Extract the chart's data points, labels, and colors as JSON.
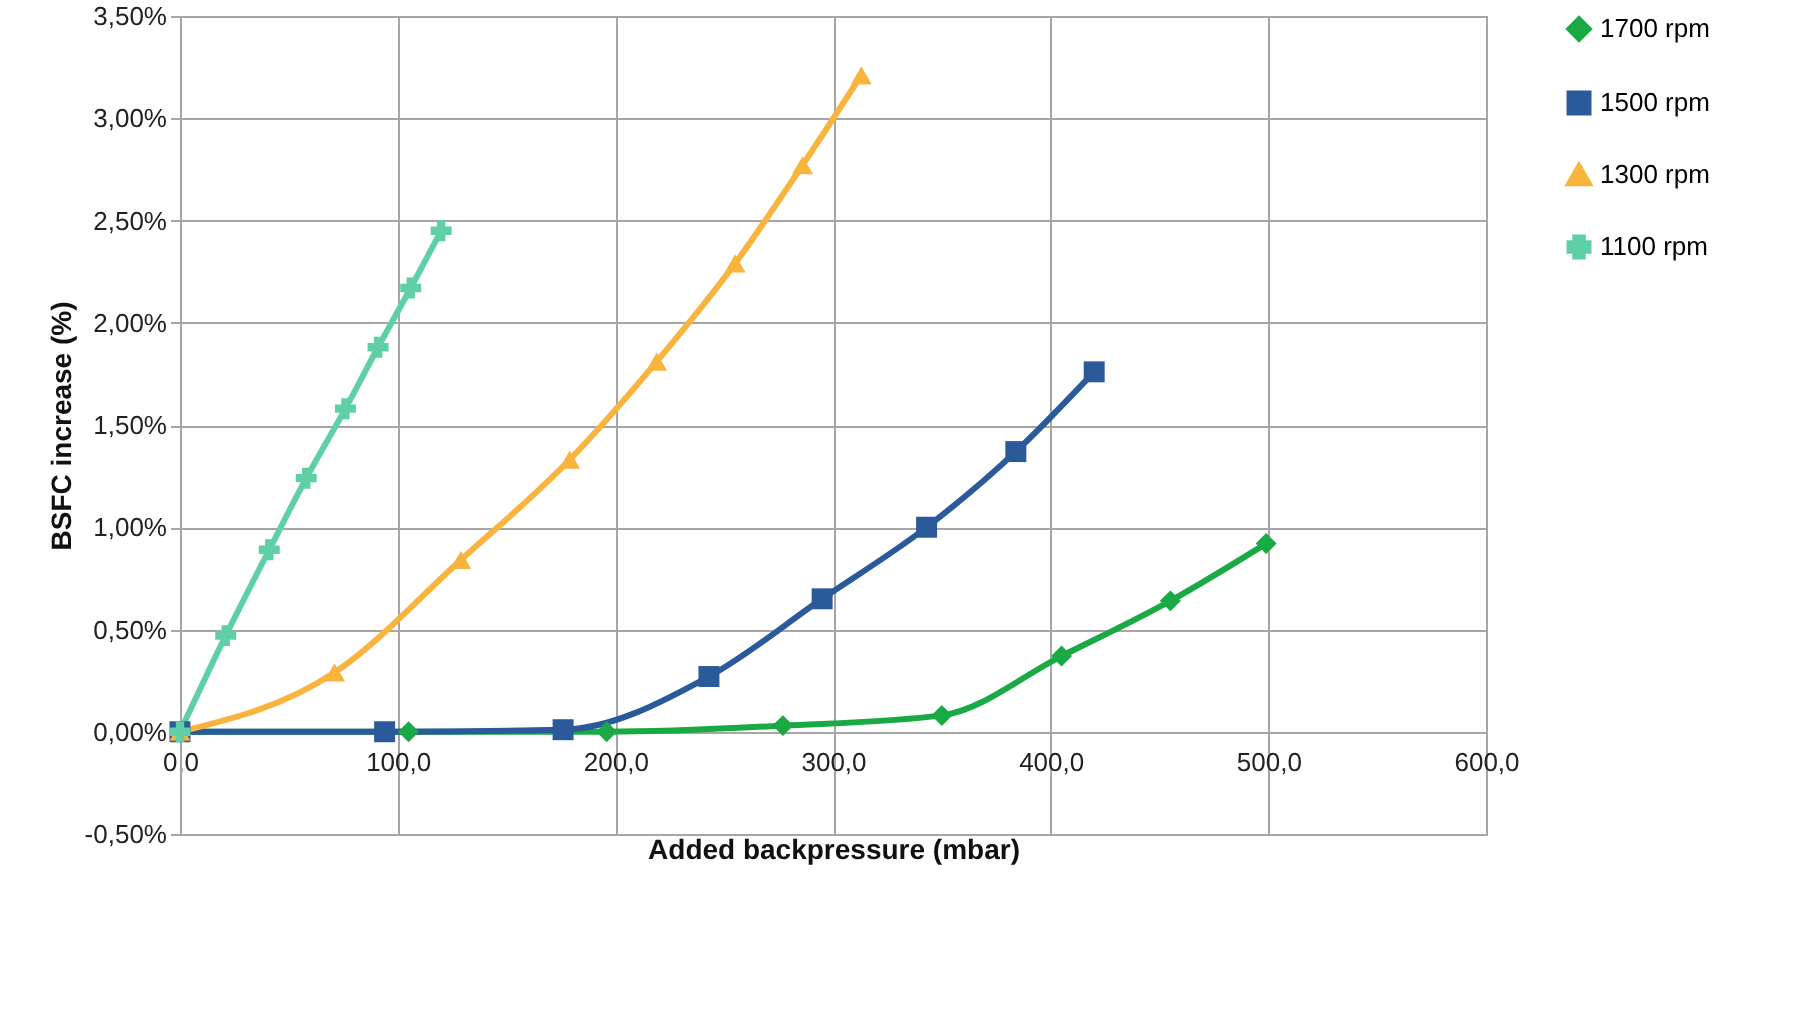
{
  "chart_data": {
    "type": "line",
    "xlabel": "Added backpressure (mbar)",
    "ylabel": "BSFC increase (%)",
    "xlim": [
      0,
      600
    ],
    "xticks": [
      {
        "value": 0,
        "label": "0,0"
      },
      {
        "value": 100,
        "label": "100,0"
      },
      {
        "value": 200,
        "label": "200,0"
      },
      {
        "value": 300,
        "label": "300,0"
      },
      {
        "value": 400,
        "label": "400,0"
      },
      {
        "value": 500,
        "label": "500,0"
      },
      {
        "value": 600,
        "label": "600,0"
      }
    ],
    "ylim": [
      -0.5,
      3.5
    ],
    "yticks": [
      {
        "value": -0.5,
        "label": "-0,50%"
      },
      {
        "value": 0,
        "label": "0,00%"
      },
      {
        "value": 0.5,
        "label": "0,50%"
      },
      {
        "value": 1,
        "label": "1,00%"
      },
      {
        "value": 1.5,
        "label": "1,50%"
      },
      {
        "value": 2,
        "label": "2,00%"
      },
      {
        "value": 2.5,
        "label": "2,50%"
      },
      {
        "value": 3,
        "label": "3,00%"
      },
      {
        "value": 3.5,
        "label": "3,50%"
      }
    ],
    "grid": true,
    "legend": "right",
    "line_style": "solid",
    "series": [
      {
        "name": "1700 rpm",
        "color": "#1aaa45",
        "marker": "diamond",
        "x": [
          0,
          105,
          196,
          277,
          350,
          405,
          455,
          499
        ],
        "values": [
          0,
          0,
          0,
          0.03,
          0.08,
          0.37,
          0.64,
          0.92
        ]
      },
      {
        "name": "1500 rpm",
        "color": "#2b5a9a",
        "marker": "square",
        "x": [
          0,
          94,
          176,
          243,
          295,
          343,
          384,
          420
        ],
        "values": [
          0,
          0,
          0.01,
          0.27,
          0.65,
          1.0,
          1.37,
          1.76
        ]
      },
      {
        "name": "1300 rpm",
        "color": "#f8b43c",
        "marker": "triangle",
        "x": [
          0,
          71,
          129,
          179,
          219,
          255,
          286,
          313
        ],
        "values": [
          0,
          0.29,
          0.84,
          1.33,
          1.81,
          2.29,
          2.77,
          3.21
        ]
      },
      {
        "name": "1100 rpm",
        "color": "#5fd0a6",
        "marker": "cross",
        "x": [
          0,
          21,
          41,
          58,
          76,
          91,
          106,
          120
        ],
        "values": [
          0,
          0.47,
          0.89,
          1.24,
          1.58,
          1.88,
          2.17,
          2.45
        ]
      }
    ]
  }
}
